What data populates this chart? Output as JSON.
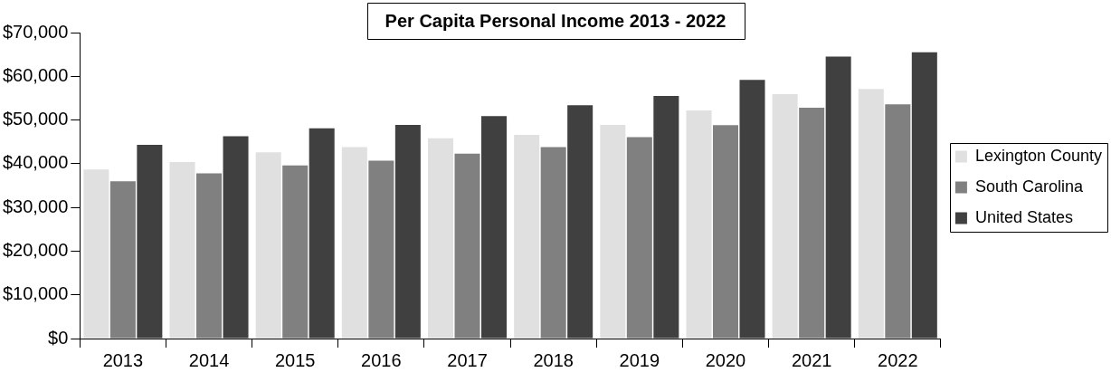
{
  "chart_data": {
    "type": "bar",
    "title": "Per Capita Personal Income 2013 - 2022",
    "categories": [
      "2013",
      "2014",
      "2015",
      "2016",
      "2017",
      "2018",
      "2019",
      "2020",
      "2021",
      "2022"
    ],
    "series": [
      {
        "name": "Lexington County",
        "color": "#e0e0e0",
        "values": [
          38700,
          40400,
          42600,
          43800,
          45800,
          46600,
          48900,
          52200,
          55900,
          57100
        ]
      },
      {
        "name": "South Carolina",
        "color": "#808080",
        "values": [
          36000,
          37800,
          39600,
          40700,
          42300,
          43800,
          46100,
          48800,
          52800,
          53600
        ]
      },
      {
        "name": "United States",
        "color": "#404040",
        "values": [
          44300,
          46300,
          48100,
          48900,
          50900,
          53400,
          55500,
          59200,
          64500,
          65500
        ]
      }
    ],
    "ylim": [
      0,
      70000
    ],
    "yticks": [
      {
        "value": 0,
        "label": "$0"
      },
      {
        "value": 10000,
        "label": "$10,000"
      },
      {
        "value": 20000,
        "label": "$20,000"
      },
      {
        "value": 30000,
        "label": "$30,000"
      },
      {
        "value": 40000,
        "label": "$40,000"
      },
      {
        "value": 50000,
        "label": "$50,000"
      },
      {
        "value": 60000,
        "label": "$60,000"
      },
      {
        "value": 70000,
        "label": "$70,000"
      }
    ],
    "grid": false,
    "legend": "right"
  }
}
